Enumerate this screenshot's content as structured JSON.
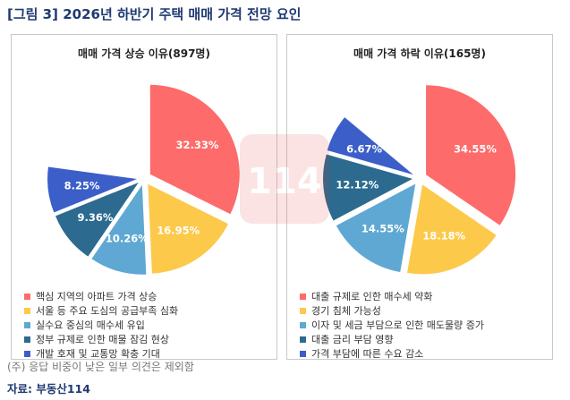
{
  "figure_title": "[그림 3] 2026년 하반기 주택 매매 가격 전망 요인",
  "note": "(주) 응답 비중이 낮은 일부 의견은 제외함",
  "source": "자료: 부동산114",
  "watermark_text": "114",
  "chart_data": [
    {
      "type": "pie",
      "title": "매매 가격 상승 이유(897명)",
      "labels": [
        "핵심 지역의 아파트 가격 상승",
        "서울 등 주요 도심의 공급부족 심화",
        "실수요 중심의 매수세 유입",
        "정부 규제로 인한 매물 잠김 현상",
        "개발 호재 및 교통망 확충 기대"
      ],
      "values": [
        32.33,
        16.95,
        10.26,
        9.36,
        8.25
      ],
      "value_labels": [
        "32.33%",
        "16.95%",
        "10.26%",
        "9.36%",
        "8.25%"
      ],
      "colors": [
        "#fd6b6b",
        "#fcc94a",
        "#5fa8d3",
        "#2c6b8f",
        "#3b5ec9"
      ],
      "legend": "bottom-left"
    },
    {
      "type": "pie",
      "title": "매매 가격 하락 이유(165명)",
      "labels": [
        "대출 규제로 인한 매수세 약화",
        "경기 침체 가능성",
        "이자 및 세금 부담으로 인한 매도물량 증가",
        "대출 금리 부담 영향",
        "가격 부담에 따른 수요 감소"
      ],
      "values": [
        34.55,
        18.18,
        14.55,
        12.12,
        6.67
      ],
      "value_labels": [
        "34.55%",
        "18.18%",
        "14.55%",
        "12.12%",
        "6.67%"
      ],
      "colors": [
        "#fd6b6b",
        "#fcc94a",
        "#5fa8d3",
        "#2c6b8f",
        "#3b5ec9"
      ],
      "legend": "bottom-left"
    }
  ]
}
